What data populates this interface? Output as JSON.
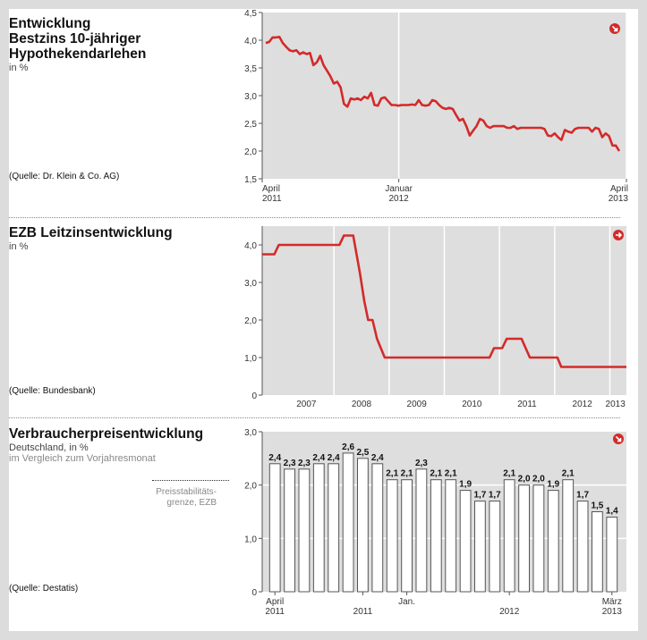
{
  "panels": [
    {
      "title_lines": [
        "Entwicklung",
        "Bestzins 10-jähriger",
        "Hypothekendarlehen"
      ],
      "unit": "in %",
      "source": "(Quelle: Dr. Klein & Co. AG)"
    },
    {
      "title_lines": [
        "EZB Leitzinsentwicklung"
      ],
      "unit": "in %",
      "source": "(Quelle: Bundesbank)"
    },
    {
      "title_lines": [
        "Verbraucherpreisentwicklung"
      ],
      "unit": "Deutschland, in %",
      "subtitle": "im Vergleich zum Vorjahresmonat",
      "source": "(Quelle: Destatis)",
      "note": [
        "Preisstabilitäts-",
        "grenze, EZB"
      ]
    }
  ],
  "colors": {
    "line": "#d42a2a",
    "plot_bg": "#dedede",
    "grid": "#ffffff",
    "bar_fill": "#ffffff",
    "bar_stroke": "#555555"
  },
  "icons": [
    "arrow-down-right-icon",
    "arrow-right-icon",
    "arrow-down-right-icon"
  ],
  "chart_data": [
    {
      "type": "line",
      "x_start": "2011-04",
      "x_end": "2013-04",
      "x_ticks": [
        {
          "label": [
            "April",
            "2011"
          ],
          "month_index": 0
        },
        {
          "label": [
            "Januar",
            "2012"
          ],
          "month_index": 9
        },
        {
          "label": [
            "April",
            "2013"
          ],
          "month_index": 24
        }
      ],
      "y_ticks": [
        "4,5",
        "4,0",
        "3,5",
        "3,0",
        "2,5",
        "2,0",
        "1,5"
      ],
      "ylim": [
        1.5,
        4.5
      ],
      "values": [
        3.95,
        3.97,
        4.05,
        4.05,
        4.06,
        3.95,
        3.88,
        3.82,
        3.8,
        3.82,
        3.75,
        3.78,
        3.75,
        3.77,
        3.55,
        3.6,
        3.72,
        3.55,
        3.45,
        3.35,
        3.22,
        3.25,
        3.15,
        2.85,
        2.8,
        2.95,
        2.93,
        2.95,
        2.92,
        2.98,
        2.95,
        3.05,
        2.83,
        2.82,
        2.95,
        2.97,
        2.9,
        2.83,
        2.83,
        2.82,
        2.83,
        2.83,
        2.83,
        2.84,
        2.83,
        2.92,
        2.83,
        2.82,
        2.83,
        2.92,
        2.9,
        2.83,
        2.78,
        2.76,
        2.78,
        2.76,
        2.65,
        2.55,
        2.58,
        2.45,
        2.28,
        2.37,
        2.45,
        2.58,
        2.55,
        2.45,
        2.42,
        2.45,
        2.45,
        2.45,
        2.45,
        2.42,
        2.42,
        2.45,
        2.4,
        2.42,
        2.42,
        2.42,
        2.42,
        2.42,
        2.42,
        2.42,
        2.4,
        2.28,
        2.27,
        2.32,
        2.25,
        2.2,
        2.38,
        2.35,
        2.33,
        2.4,
        2.42,
        2.42,
        2.42,
        2.42,
        2.35,
        2.42,
        2.4,
        2.25,
        2.32,
        2.27,
        2.1,
        2.1,
        2.0
      ]
    },
    {
      "type": "line",
      "x_range": [
        2006.7,
        2013.3
      ],
      "x_ticks": [
        "2007",
        "2008",
        "2009",
        "2010",
        "2011",
        "2012",
        "2013"
      ],
      "y_ticks": [
        "4,0",
        "3,0",
        "2,0",
        "1,0",
        "0"
      ],
      "ylim": [
        0,
        4.5
      ],
      "points": [
        [
          2006.7,
          3.75
        ],
        [
          2006.92,
          3.75
        ],
        [
          2007.0,
          4.0
        ],
        [
          2008.1,
          4.0
        ],
        [
          2008.18,
          4.25
        ],
        [
          2008.35,
          4.25
        ],
        [
          2008.47,
          3.25
        ],
        [
          2008.55,
          2.5
        ],
        [
          2008.62,
          2.0
        ],
        [
          2008.7,
          2.0
        ],
        [
          2008.78,
          1.5
        ],
        [
          2008.92,
          1.0
        ],
        [
          2010.82,
          1.0
        ],
        [
          2010.9,
          1.25
        ],
        [
          2011.05,
          1.25
        ],
        [
          2011.13,
          1.5
        ],
        [
          2011.4,
          1.5
        ],
        [
          2011.55,
          1.0
        ],
        [
          2012.05,
          1.0
        ],
        [
          2012.12,
          0.75
        ],
        [
          2013.3,
          0.75
        ]
      ]
    },
    {
      "type": "bar",
      "categories": [
        "2011-04",
        "2011-05",
        "2011-06",
        "2011-07",
        "2011-08",
        "2011-09",
        "2011-10",
        "2011-11",
        "2011-12",
        "2012-01",
        "2012-02",
        "2012-03",
        "2012-04",
        "2012-05",
        "2012-06",
        "2012-07",
        "2012-08",
        "2012-09",
        "2012-10",
        "2012-11",
        "2012-12",
        "2013-01",
        "2013-02",
        "2013-03"
      ],
      "values": [
        2.4,
        2.3,
        2.3,
        2.4,
        2.4,
        2.6,
        2.5,
        2.4,
        2.1,
        2.1,
        2.3,
        2.1,
        2.1,
        1.9,
        1.7,
        1.7,
        2.1,
        2.0,
        2.0,
        1.9,
        2.1,
        1.7,
        1.5,
        1.4
      ],
      "value_labels": [
        "2,4",
        "2,3",
        "2,3",
        "2,4",
        "2,4",
        "2,6",
        "2,5",
        "2,4",
        "2,1",
        "2,1",
        "2,3",
        "2,1",
        "2,1",
        "1,9",
        "1,7",
        "1,7",
        "2,1",
        "2,0",
        "2,0",
        "1,9",
        "2,1",
        "1,7",
        "1,5",
        "1,4"
      ],
      "x_labels": [
        {
          "text": [
            "April",
            "2011"
          ],
          "index": 0
        },
        {
          "text": [
            "",
            "2011"
          ],
          "index": 6
        },
        {
          "text": [
            "Jan.",
            ""
          ],
          "index": 9
        },
        {
          "text": [
            "",
            "2012"
          ],
          "index": 16
        },
        {
          "text": [
            "März",
            "2013"
          ],
          "index": 23
        }
      ],
      "y_ticks": [
        "3,0",
        "2,0",
        "1,0",
        "0"
      ],
      "ylim": [
        0,
        3.0
      ],
      "reference_line": 2.0
    }
  ]
}
